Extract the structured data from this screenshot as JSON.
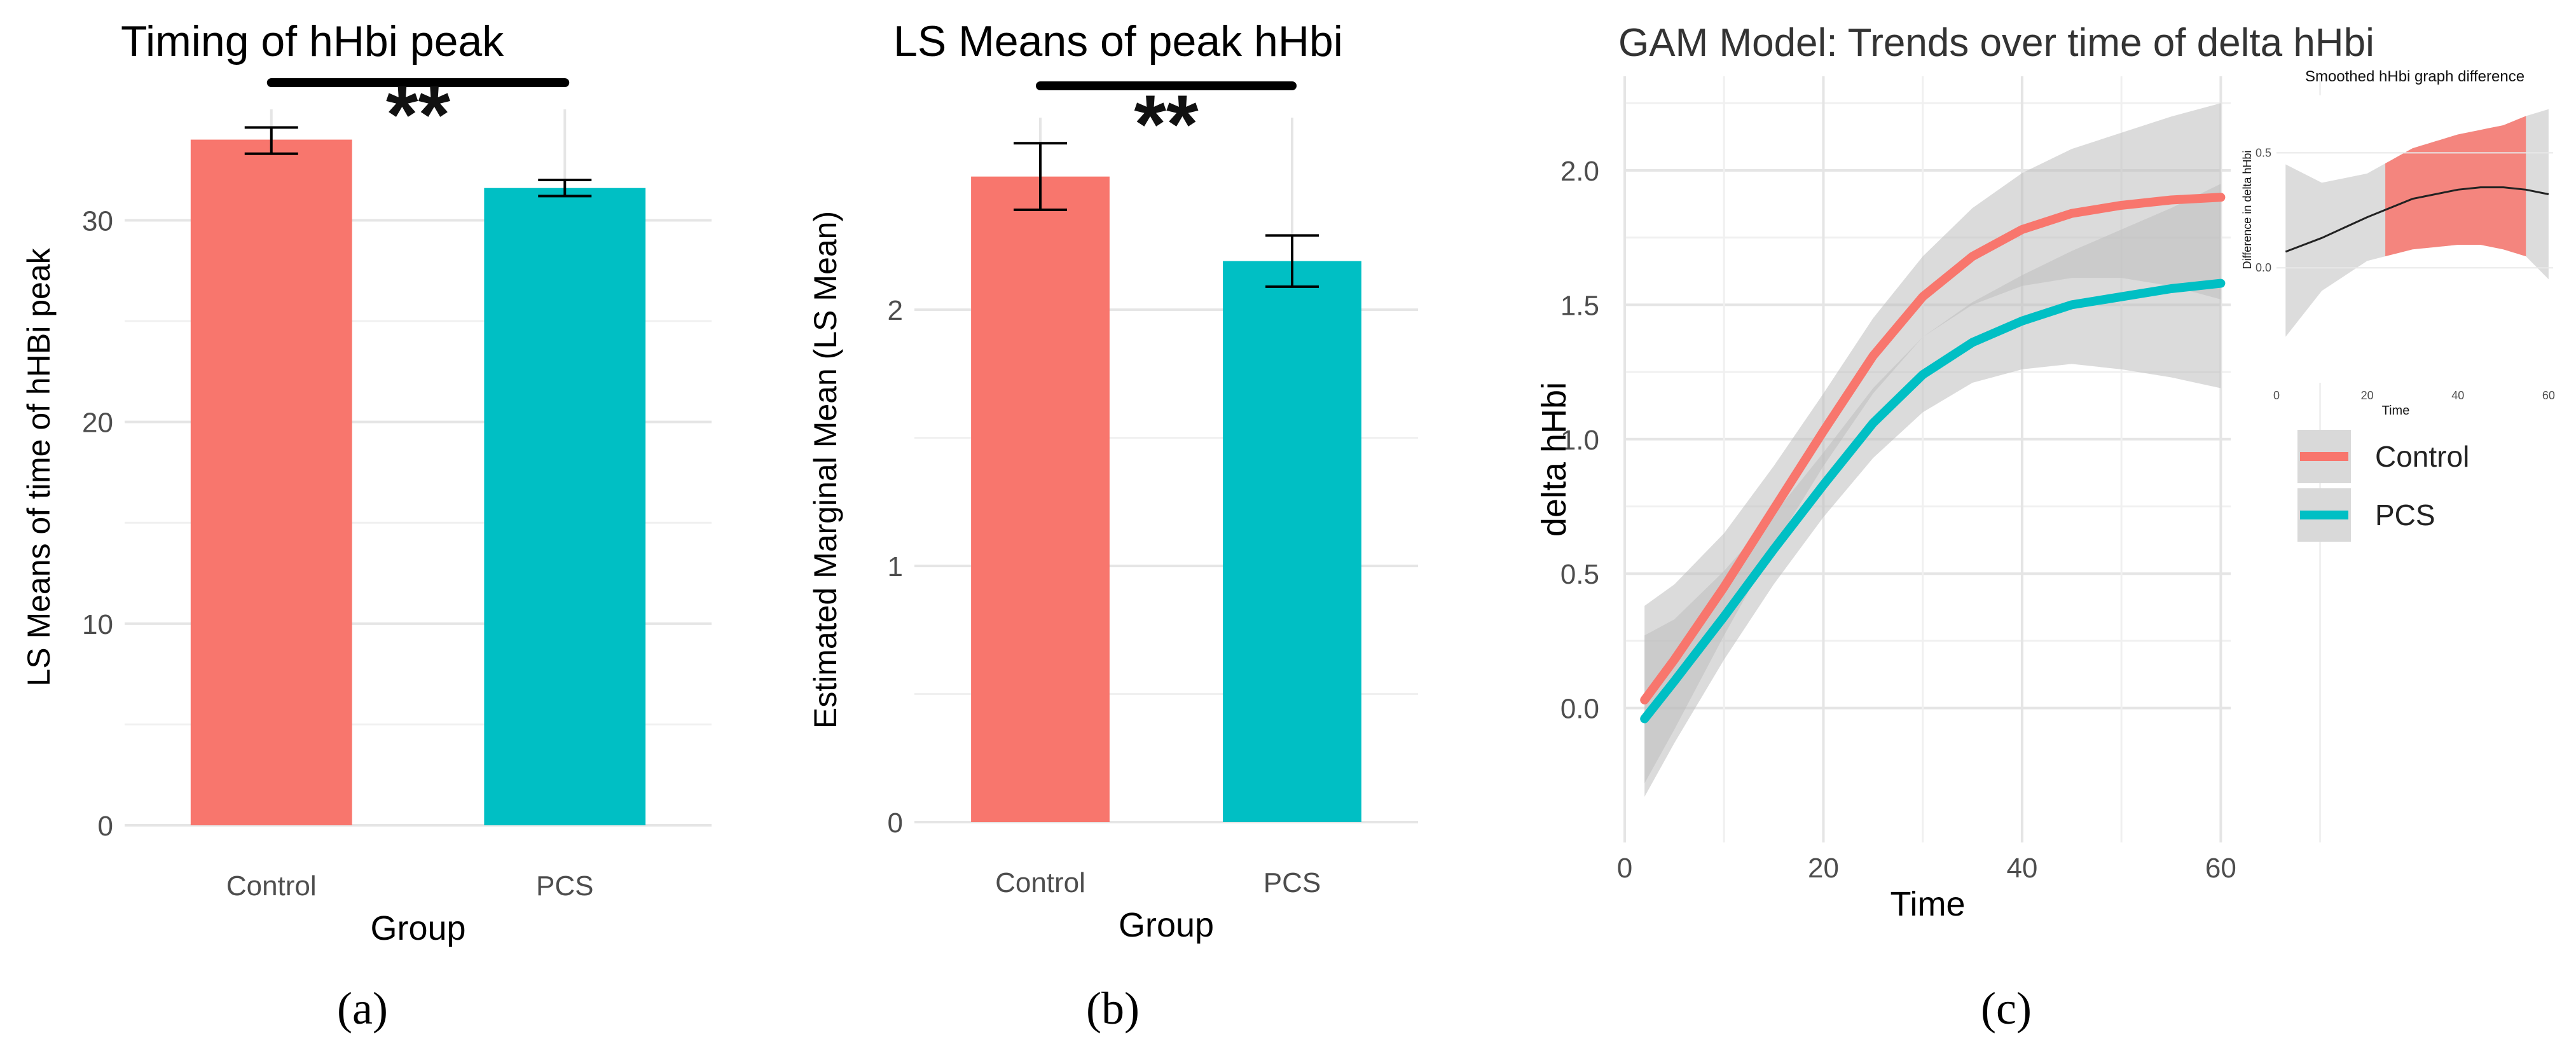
{
  "panels": {
    "a": {
      "label": "(a)"
    },
    "b": {
      "label": "(b)"
    },
    "c": {
      "label": "(c)"
    }
  },
  "colors": {
    "control": "#F8766D",
    "pcs": "#00BFC4",
    "band": "#bdbdbd",
    "grid": "#e5e5e5",
    "axis_text": "#4d4d4d"
  },
  "chart_data": [
    {
      "id": "a",
      "type": "bar",
      "title": "Timing of hHbi peak",
      "xlabel": "Group",
      "ylabel": "LS Means of time of hHBi peak",
      "categories": [
        "Control",
        "PCS"
      ],
      "values": [
        34.0,
        31.6
      ],
      "error_low": [
        33.3,
        31.2
      ],
      "error_high": [
        34.6,
        32.0
      ],
      "ylim": [
        0,
        35.5
      ],
      "yticks": [
        0,
        10,
        20,
        30
      ],
      "significance": "**",
      "grid": true
    },
    {
      "id": "b",
      "type": "bar",
      "title": "LS Means of peak hHbi",
      "xlabel": "Group",
      "ylabel": "Estimated Marginal Mean (LS Mean)",
      "categories": [
        "Control",
        "PCS"
      ],
      "values": [
        2.52,
        2.19
      ],
      "error_low": [
        2.39,
        2.09
      ],
      "error_high": [
        2.65,
        2.29
      ],
      "ylim": [
        0,
        2.75
      ],
      "yticks": [
        0,
        1,
        2
      ],
      "significance": "**",
      "grid": true
    },
    {
      "id": "c",
      "type": "line",
      "title": "GAM Model: Trends over time of delta hHbi",
      "xlabel": "Time",
      "ylabel": "delta hHbi",
      "xlim": [
        0,
        61
      ],
      "ylim": [
        -0.5,
        2.35
      ],
      "xticks": [
        0,
        20,
        40,
        60
      ],
      "yticks": [
        0.0,
        0.5,
        1.0,
        1.5,
        2.0
      ],
      "legend_position": "right",
      "grid": true,
      "x": [
        2,
        5,
        10,
        15,
        20,
        25,
        30,
        35,
        40,
        45,
        50,
        55,
        60
      ],
      "series": [
        {
          "name": "Control",
          "values": [
            0.03,
            0.18,
            0.45,
            0.74,
            1.03,
            1.31,
            1.53,
            1.68,
            1.78,
            1.84,
            1.87,
            1.89,
            1.9
          ],
          "lower": [
            -0.28,
            -0.08,
            0.27,
            0.6,
            0.9,
            1.17,
            1.38,
            1.5,
            1.57,
            1.6,
            1.6,
            1.57,
            1.52
          ],
          "upper": [
            0.38,
            0.46,
            0.65,
            0.9,
            1.17,
            1.45,
            1.68,
            1.86,
            1.99,
            2.08,
            2.14,
            2.2,
            2.25
          ]
        },
        {
          "name": "PCS",
          "values": [
            -0.04,
            0.1,
            0.34,
            0.59,
            0.83,
            1.06,
            1.24,
            1.36,
            1.44,
            1.5,
            1.53,
            1.56,
            1.58
          ],
          "lower": [
            -0.33,
            -0.13,
            0.18,
            0.46,
            0.71,
            0.93,
            1.1,
            1.21,
            1.26,
            1.28,
            1.26,
            1.23,
            1.19
          ],
          "upper": [
            0.27,
            0.33,
            0.51,
            0.72,
            0.95,
            1.19,
            1.38,
            1.51,
            1.61,
            1.7,
            1.78,
            1.86,
            1.95
          ]
        }
      ]
    },
    {
      "id": "c-inset",
      "type": "line",
      "title": "Smoothed hHbi graph difference",
      "xlabel": "Time",
      "ylabel": "Difference in delta hHbi",
      "xlim": [
        0,
        61
      ],
      "ylim": [
        -0.5,
        0.75
      ],
      "xticks": [
        0,
        20,
        40,
        60
      ],
      "yticks": [
        0.0,
        0.5
      ],
      "highlight_range": [
        24,
        55
      ],
      "x": [
        2,
        10,
        20,
        30,
        40,
        45,
        50,
        55,
        60
      ],
      "values": [
        0.07,
        0.13,
        0.22,
        0.3,
        0.34,
        0.35,
        0.35,
        0.34,
        0.32
      ],
      "lower": [
        -0.3,
        -0.1,
        0.03,
        0.08,
        0.1,
        0.1,
        0.08,
        0.05,
        -0.05
      ],
      "upper": [
        0.45,
        0.37,
        0.41,
        0.52,
        0.58,
        0.6,
        0.62,
        0.66,
        0.69
      ]
    }
  ]
}
